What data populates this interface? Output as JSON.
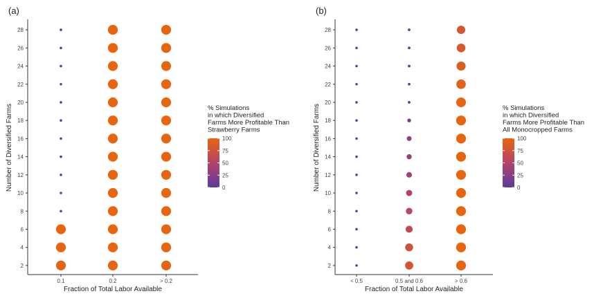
{
  "chart_data": [
    {
      "panel_label": "(a)",
      "type": "scatter",
      "xlabel": "Fraction of Total Labor Available",
      "ylabel": "Number of Diversified Farms",
      "categories": [
        "0.1",
        "0.2",
        "> 0.2"
      ],
      "y_ticks": [
        2,
        4,
        6,
        8,
        10,
        12,
        14,
        16,
        18,
        20,
        22,
        24,
        26,
        28
      ],
      "ylim": [
        1,
        29
      ],
      "legend_title": [
        "% Simulations",
        "in which Diversified",
        " Farms More Profitable Than",
        " Strawberry Farms"
      ],
      "legend_ticks": [
        0,
        25,
        50,
        75,
        100
      ],
      "color_low": "#5b3c9b",
      "color_high": "#e8650f",
      "grid": false,
      "legend_position": "right",
      "series": [
        {
          "category": "0.1",
          "y": [
            2,
            4,
            6,
            8,
            10,
            12,
            14,
            16,
            18,
            20,
            22,
            24,
            26,
            28
          ],
          "percent": [
            100,
            100,
            100,
            0,
            0,
            0,
            0,
            0,
            0,
            0,
            0,
            0,
            0,
            0
          ]
        },
        {
          "category": "0.2",
          "y": [
            2,
            4,
            6,
            8,
            10,
            12,
            14,
            16,
            18,
            20,
            22,
            24,
            26,
            28
          ],
          "percent": [
            100,
            100,
            100,
            100,
            100,
            100,
            100,
            100,
            100,
            100,
            100,
            100,
            100,
            100
          ]
        },
        {
          "category": "> 0.2",
          "y": [
            2,
            4,
            6,
            8,
            10,
            12,
            14,
            16,
            18,
            20,
            22,
            24,
            26,
            28
          ],
          "percent": [
            100,
            100,
            100,
            100,
            100,
            100,
            100,
            100,
            100,
            100,
            100,
            100,
            100,
            100
          ]
        }
      ]
    },
    {
      "panel_label": "(b)",
      "type": "scatter",
      "xlabel": "Fraction of Total Labor Available",
      "ylabel": "Number of Diversified Farms",
      "categories": [
        "< 0.5",
        "0.5 and 0.6",
        "> 0.6"
      ],
      "y_ticks": [
        2,
        4,
        6,
        8,
        10,
        12,
        14,
        16,
        18,
        20,
        22,
        24,
        26,
        28
      ],
      "ylim": [
        1,
        29
      ],
      "legend_title": [
        "% Simulations",
        "in which Diversified",
        " Farms More Profitable Than",
        " All Monocropped Farms"
      ],
      "legend_ticks": [
        0,
        25,
        50,
        75,
        100
      ],
      "color_low": "#5b3c9b",
      "color_high": "#e8650f",
      "grid": false,
      "legend_position": "right",
      "series": [
        {
          "category": "< 0.5",
          "y": [
            2,
            4,
            6,
            8,
            10,
            12,
            14,
            16,
            18,
            20,
            22,
            24,
            26,
            28
          ],
          "percent": [
            0,
            0,
            0,
            0,
            0,
            0,
            0,
            0,
            0,
            0,
            0,
            0,
            0,
            0
          ]
        },
        {
          "category": "0.5 and 0.6",
          "y": [
            2,
            4,
            6,
            8,
            10,
            12,
            14,
            16,
            18,
            20,
            22,
            24,
            26,
            28
          ],
          "percent": [
            78,
            74,
            62,
            55,
            50,
            42,
            36,
            32,
            18,
            2,
            2,
            2,
            2,
            2
          ]
        },
        {
          "category": "> 0.6",
          "y": [
            2,
            4,
            6,
            8,
            10,
            12,
            14,
            16,
            18,
            20,
            22,
            24,
            26,
            28
          ],
          "percent": [
            100,
            100,
            100,
            100,
            100,
            100,
            100,
            100,
            100,
            98,
            95,
            90,
            85,
            80
          ]
        }
      ]
    }
  ]
}
